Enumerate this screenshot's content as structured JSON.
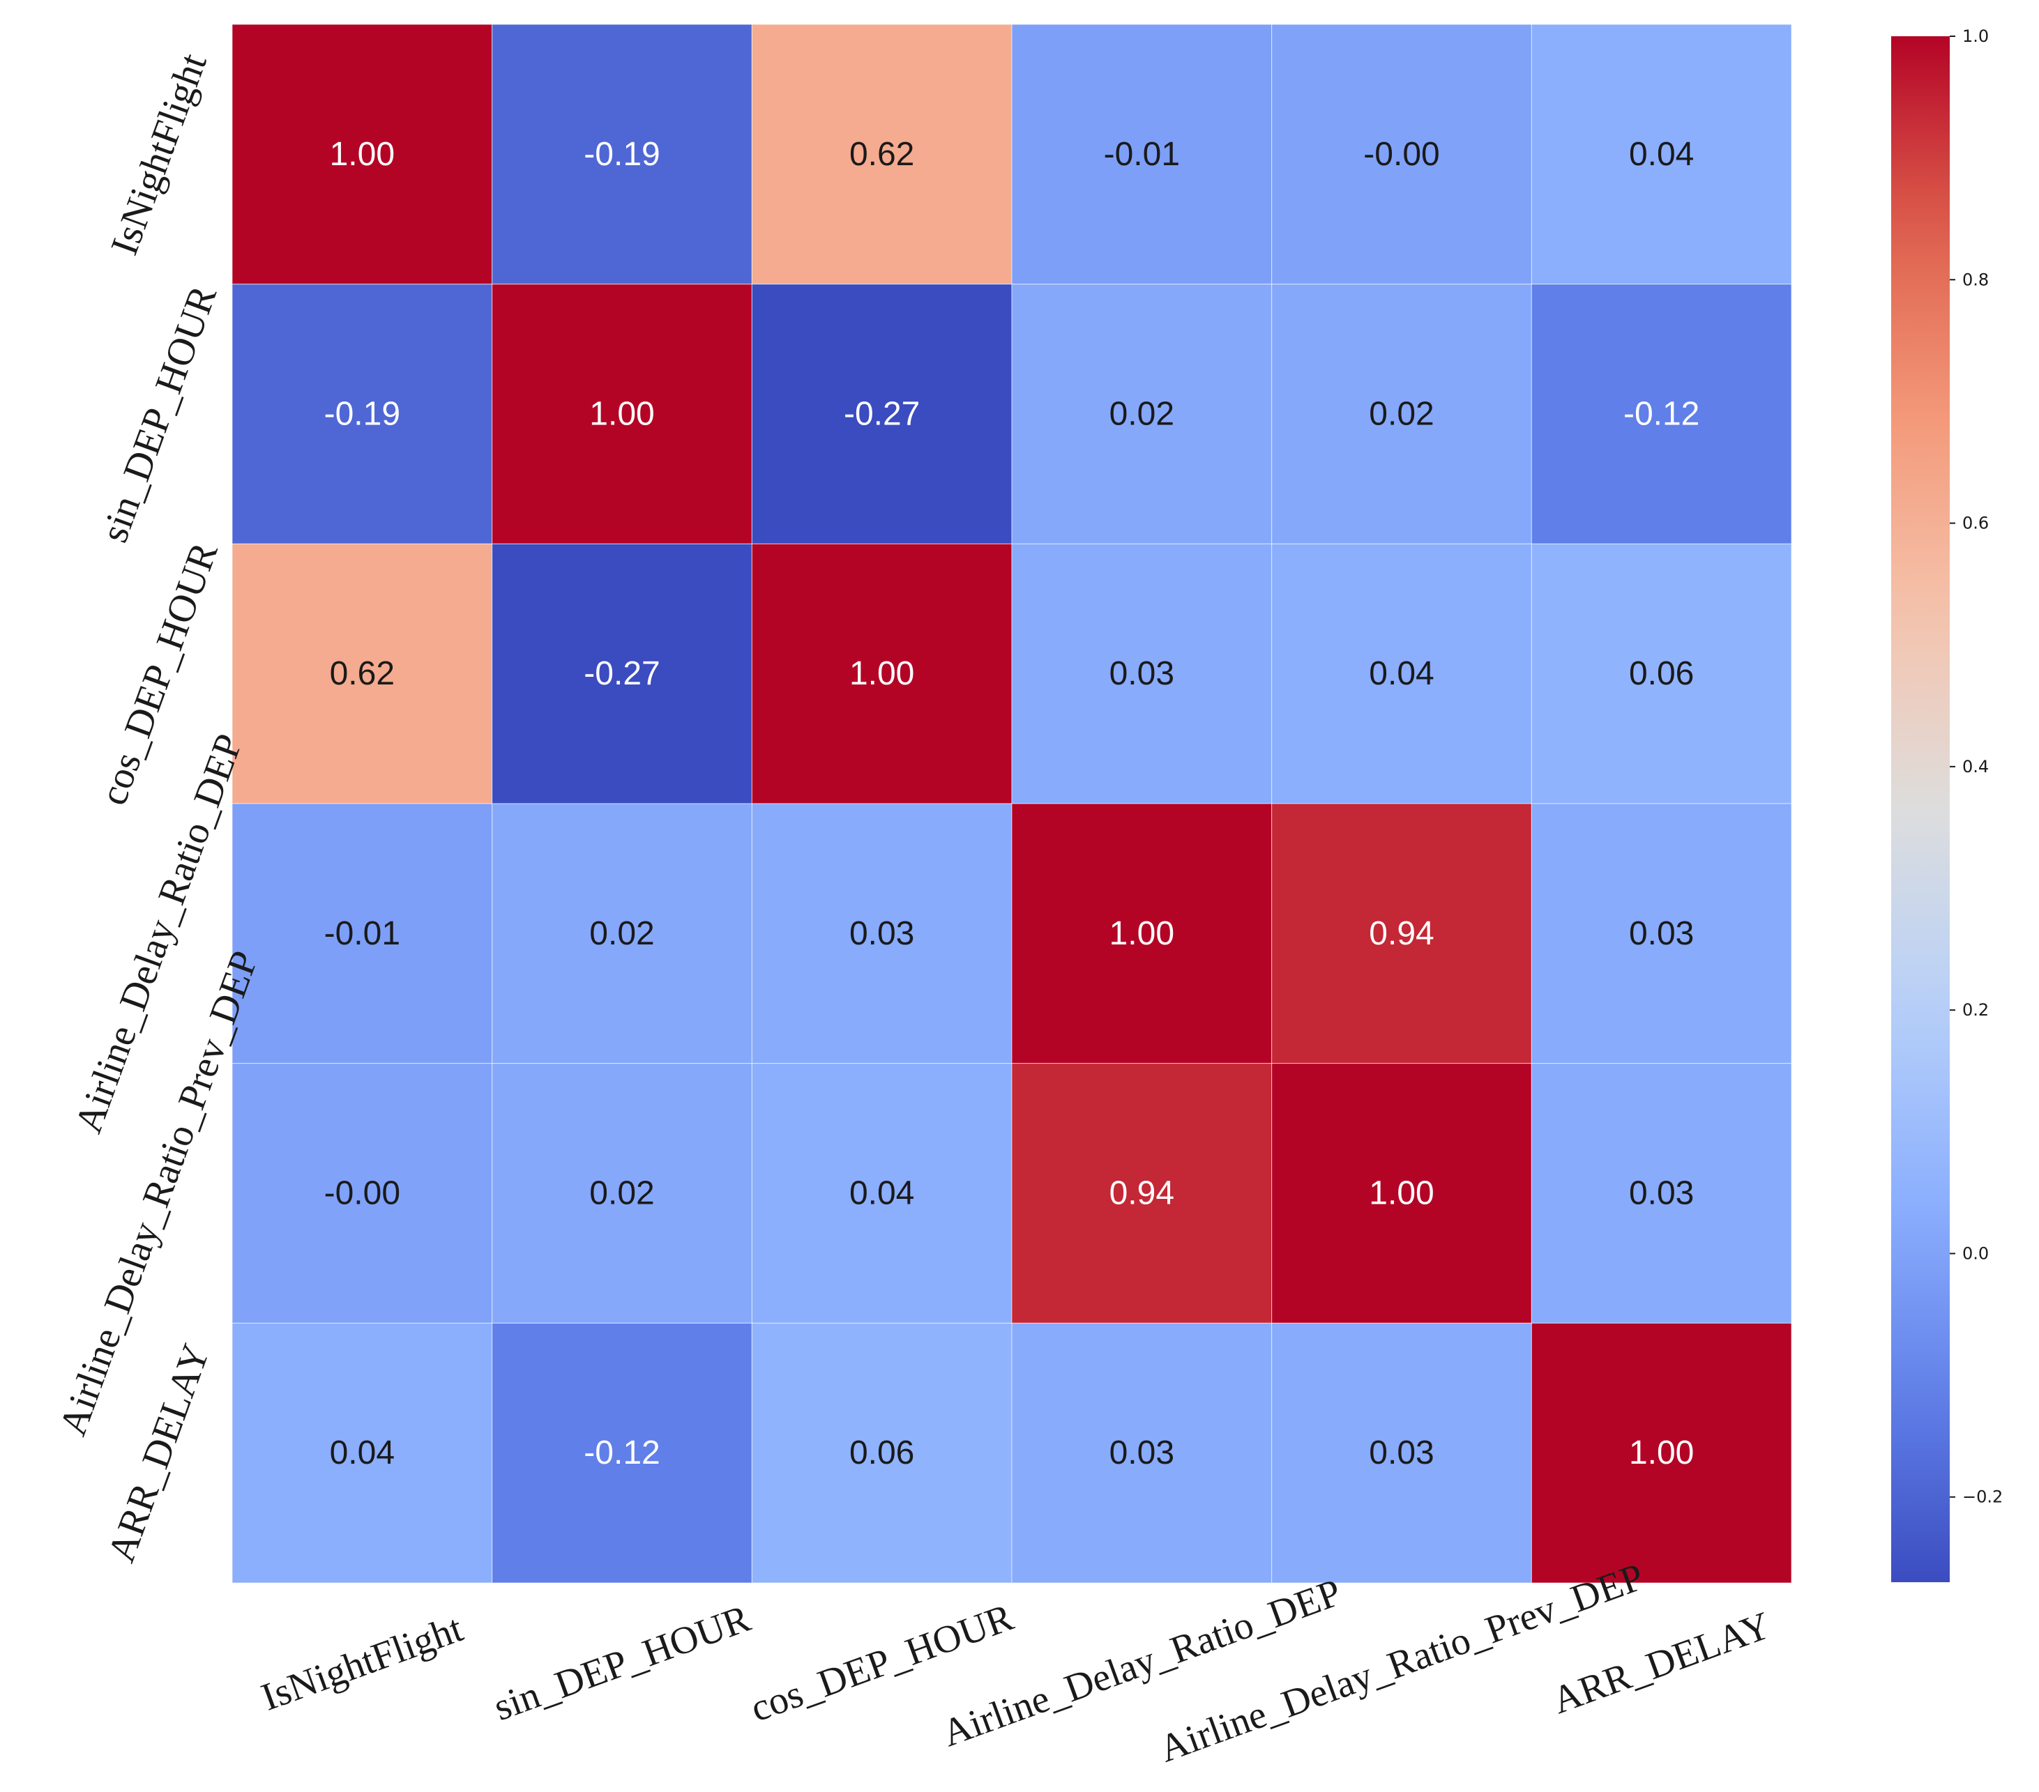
{
  "chart_data": {
    "type": "heatmap",
    "title": "",
    "x_labels": [
      "IsNightFlight",
      "sin_DEP_HOUR",
      "cos_DEP_HOUR",
      "Airline_Delay_Ratio_DEP",
      "Airline_Delay_Ratio_Prev_DEP",
      "ARR_DELAY"
    ],
    "y_labels": [
      "IsNightFlight",
      "sin_DEP_HOUR",
      "cos_DEP_HOUR",
      "Airline_Delay_Ratio_DEP",
      "Airline_Delay_Ratio_Prev_DEP",
      "ARR_DELAY"
    ],
    "values": [
      [
        1.0,
        -0.19,
        0.62,
        -0.01,
        -0.0,
        0.04
      ],
      [
        -0.19,
        1.0,
        -0.27,
        0.02,
        0.02,
        -0.12
      ],
      [
        0.62,
        -0.27,
        1.0,
        0.03,
        0.04,
        0.06
      ],
      [
        -0.01,
        0.02,
        0.03,
        1.0,
        0.94,
        0.03
      ],
      [
        -0.0,
        0.02,
        0.04,
        0.94,
        1.0,
        0.03
      ],
      [
        0.04,
        -0.12,
        0.06,
        0.03,
        0.03,
        1.0
      ]
    ],
    "annotations": [
      [
        "1.00",
        "-0.19",
        "0.62",
        "-0.01",
        "-0.00",
        "0.04"
      ],
      [
        "-0.19",
        "1.00",
        "-0.27",
        "0.02",
        "0.02",
        "-0.12"
      ],
      [
        "0.62",
        "-0.27",
        "1.00",
        "0.03",
        "0.04",
        "0.06"
      ],
      [
        "-0.01",
        "0.02",
        "0.03",
        "1.00",
        "0.94",
        "0.03"
      ],
      [
        "-0.00",
        "0.02",
        "0.04",
        "0.94",
        "1.00",
        "0.03"
      ],
      [
        "0.04",
        "-0.12",
        "0.06",
        "0.03",
        "0.03",
        "1.00"
      ]
    ],
    "colormap": "coolwarm",
    "vmin": -0.27,
    "vmax": 1.0,
    "colorbar_ticks": [
      -0.2,
      0.0,
      0.2,
      0.4,
      0.6,
      0.8,
      1.0
    ],
    "colorbar_tick_labels": [
      "−0.2",
      "0.0",
      "0.2",
      "0.4",
      "0.6",
      "0.8",
      "1.0"
    ],
    "text_colors": {
      "light": "#ffffff",
      "dark": "#1a1a1a"
    },
    "cell_border_color": "#ffffff"
  }
}
